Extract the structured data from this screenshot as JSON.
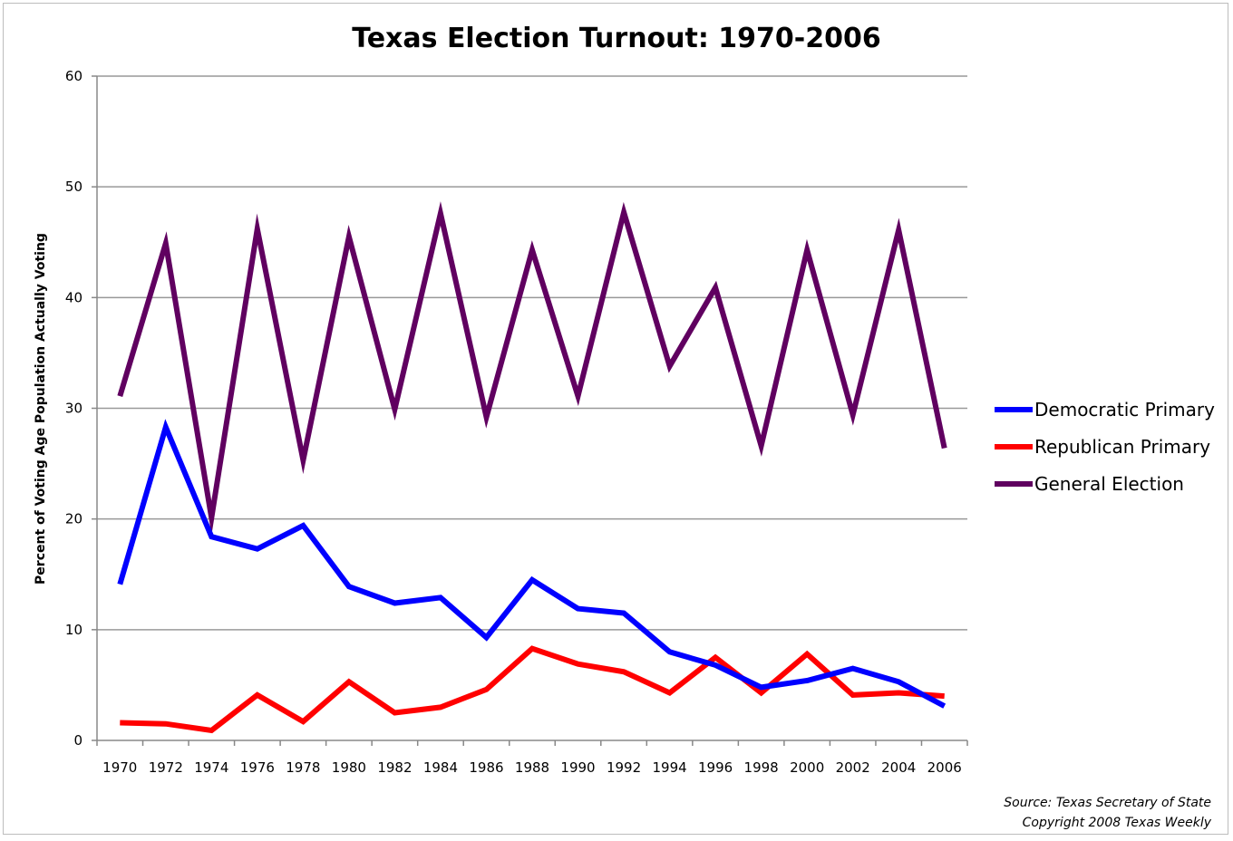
{
  "chart_data": {
    "type": "line",
    "title": "Texas Election Turnout: 1970-2006",
    "xlabel": "",
    "ylabel": "Percent of Voting Age Population Actually Voting",
    "ylim": [
      0,
      60
    ],
    "yticks": [
      "0",
      "10",
      "20",
      "30",
      "40",
      "50",
      "60"
    ],
    "ytick_values": [
      0,
      10,
      20,
      30,
      40,
      50,
      60
    ],
    "grid": true,
    "legend_position": "right",
    "categories": [
      "1970",
      "1972",
      "1974",
      "1976",
      "1978",
      "1980",
      "1982",
      "1984",
      "1986",
      "1988",
      "1990",
      "1992",
      "1994",
      "1996",
      "1998",
      "2000",
      "2002",
      "2004",
      "2006"
    ],
    "series": [
      {
        "name": "Democratic Primary",
        "color": "#0000ff",
        "values": [
          14.1,
          28.3,
          18.4,
          17.3,
          19.4,
          13.9,
          12.4,
          12.9,
          9.3,
          14.5,
          11.9,
          11.5,
          8.0,
          6.8,
          4.8,
          5.4,
          6.5,
          5.3,
          3.1
        ]
      },
      {
        "name": "Republican Primary",
        "color": "#ff0000",
        "values": [
          1.6,
          1.5,
          0.9,
          4.1,
          1.7,
          5.3,
          2.5,
          3.0,
          4.6,
          8.3,
          6.9,
          6.2,
          4.3,
          7.5,
          4.3,
          7.8,
          4.1,
          4.3,
          4.0
        ]
      },
      {
        "name": "General Election",
        "color": "#600060",
        "values": [
          31.1,
          44.9,
          20.1,
          46.2,
          25.3,
          45.5,
          29.9,
          47.6,
          29.2,
          44.3,
          31.1,
          47.7,
          33.8,
          40.9,
          26.6,
          44.3,
          29.4,
          46.1,
          26.4
        ]
      }
    ],
    "source_lines": [
      "Source: Texas Secretary of State",
      "Copyright 2008 Texas Weekly"
    ]
  }
}
